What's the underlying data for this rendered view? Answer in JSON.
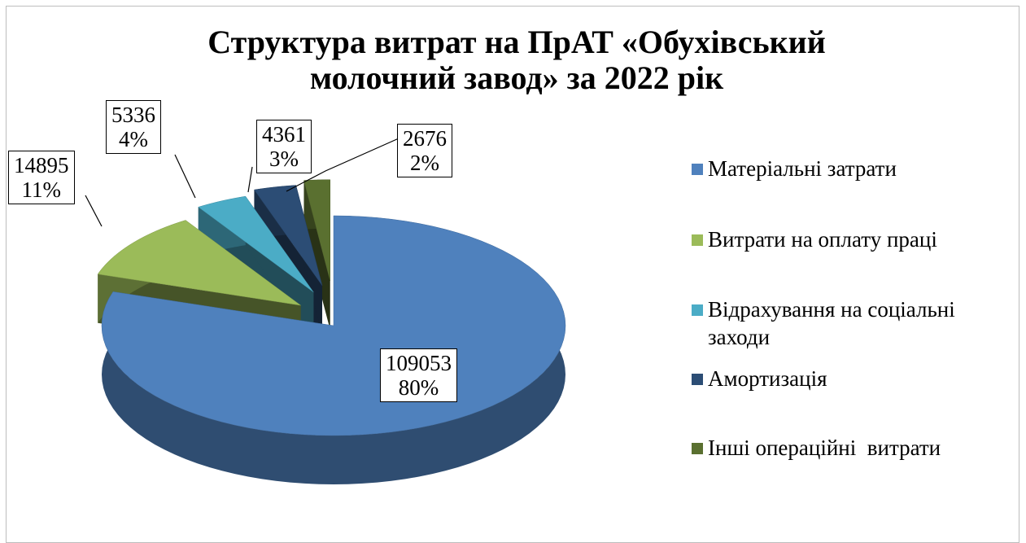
{
  "chart_data": {
    "type": "pie",
    "title": "Структура витрат на ПрАТ «Обухівський молочний завод» за 2022 рік",
    "categories": [
      "Матеріальні затрати",
      "Витрати на оплату праці",
      "Відрахування на соціальні заходи",
      "Амортизація",
      "Інші операційні  витрати"
    ],
    "values": [
      109053,
      14895,
      5336,
      4361,
      2676
    ],
    "percent_labels": [
      "80%",
      "11%",
      "4%",
      "3%",
      "2%"
    ],
    "colors": [
      "#4f81bd",
      "#9bbb59",
      "#4bacc6",
      "#2c4d75",
      "#5a7030"
    ],
    "legend": "right"
  }
}
